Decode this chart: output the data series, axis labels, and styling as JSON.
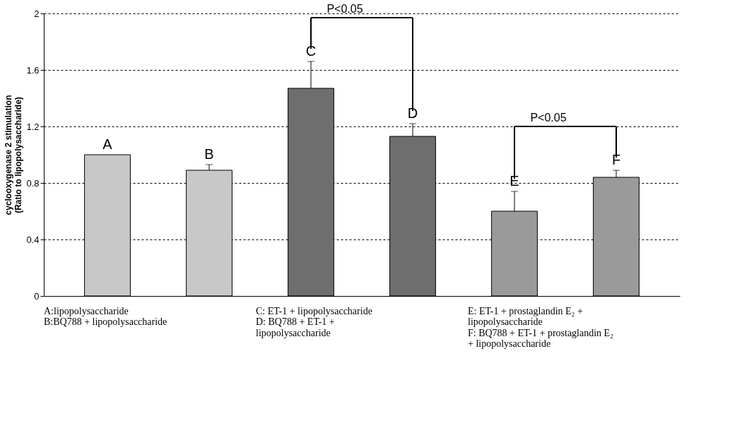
{
  "chart_data": {
    "type": "bar",
    "ylabel": "cyclooxygenase 2 stimulation\n(Ratio to lipopolysaccharide)",
    "categories": [
      "A",
      "B",
      "C",
      "D",
      "E",
      "F"
    ],
    "values": [
      1.0,
      0.89,
      1.47,
      1.13,
      0.6,
      0.84
    ],
    "errors": [
      null,
      0.04,
      0.19,
      0.09,
      0.14,
      0.05
    ],
    "colors": [
      "#c8c8c8",
      "#c8c8c8",
      "#6e6e6e",
      "#6e6e6e",
      "#9a9a9a",
      "#9a9a9a"
    ],
    "ylim": [
      0,
      2
    ],
    "yticks": [
      0,
      0.4,
      0.8,
      1.2,
      1.6,
      2
    ],
    "grid": "y",
    "tick_labels": "y",
    "annotations": [
      "P<0.05",
      "P<0.05",
      "A:lipopolysaccharide",
      "B:BQ788 + lipopolysaccharide",
      "C: ET-1 + lipopolysaccharide",
      "D: BQ788 + ET-1 + lipopolysaccharide",
      "E: ET-1 + prostaglandin E₂ + lipopolysaccharide",
      "F: BQ788 + ET-1 + prostaglandin E₂ + lipopolysaccharide"
    ]
  }
}
